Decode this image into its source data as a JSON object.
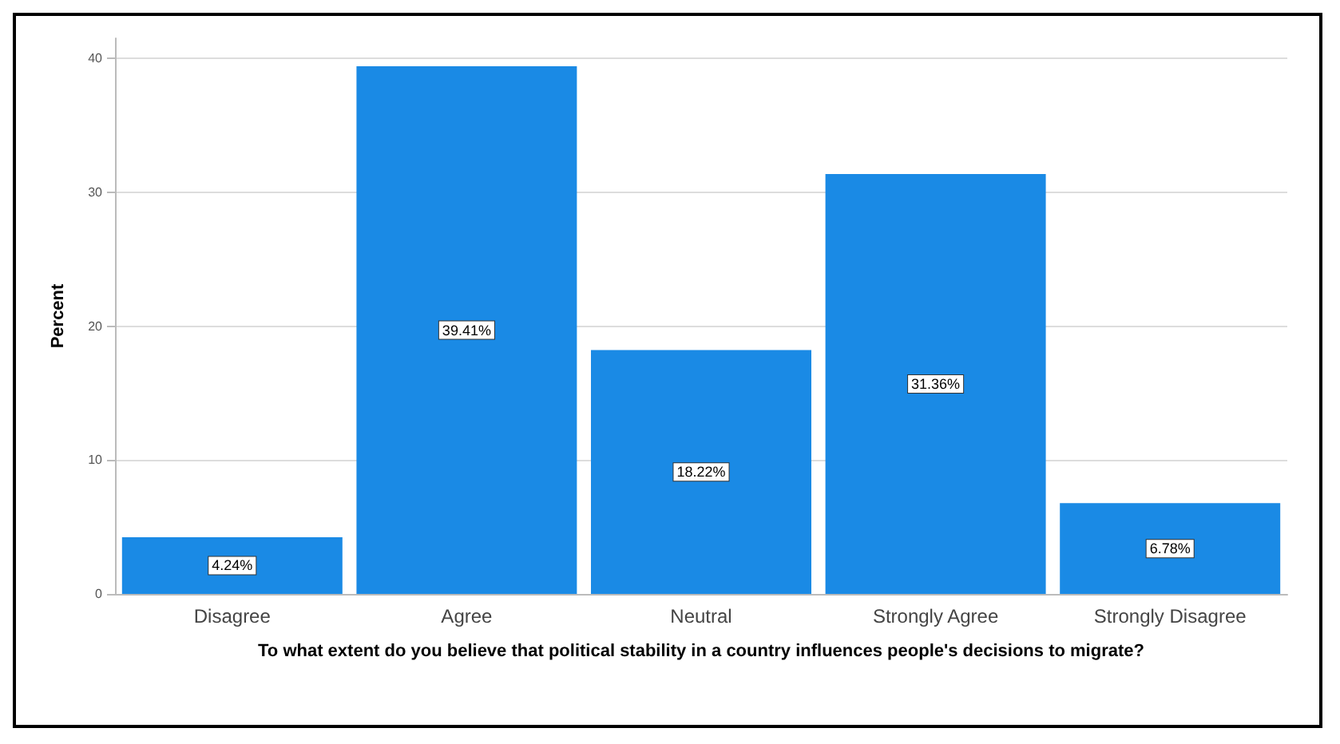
{
  "chart_data": {
    "type": "bar",
    "xlabel": "To what extent do you believe that political stability in a country influences people's decisions to migrate?",
    "ylabel": "Percent",
    "categories": [
      "Disagree",
      "Agree",
      "Neutral",
      "Strongly Agree",
      "Strongly Disagree"
    ],
    "values": [
      4.24,
      39.41,
      18.22,
      31.36,
      6.78
    ],
    "value_labels": [
      "4.24%",
      "39.41%",
      "18.22%",
      "31.36%",
      "6.78%"
    ],
    "color": "#1a8ae5",
    "ylim": [
      0,
      41.5
    ],
    "yticks": [
      0,
      10,
      20,
      30,
      40
    ],
    "grid": "y"
  }
}
